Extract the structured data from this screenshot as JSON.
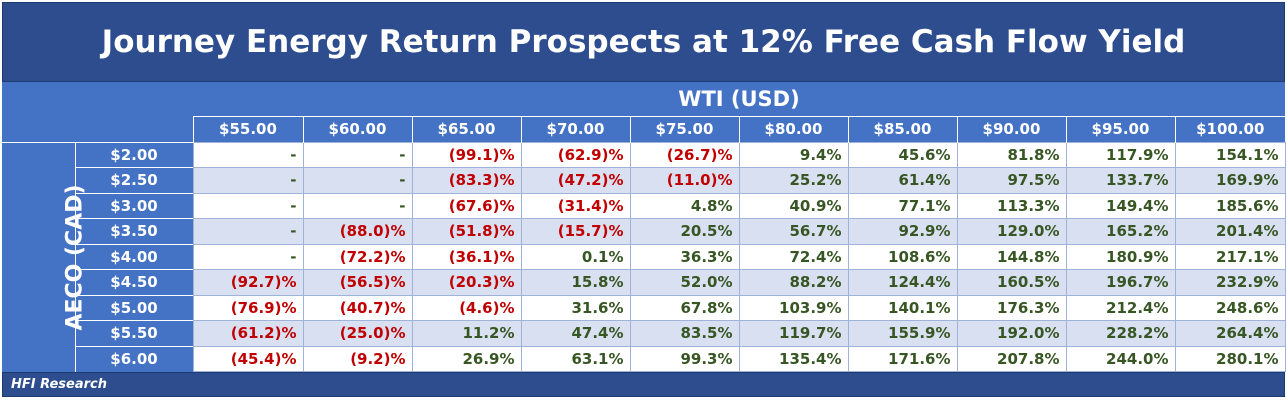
{
  "title": "Journey Energy Return Prospects at 12% Free Cash Flow Yield",
  "x_axis_label": "WTI (USD)",
  "y_axis_label": "AECO (CAD)",
  "columns": [
    "$55.00",
    "$60.00",
    "$65.00",
    "$70.00",
    "$75.00",
    "$80.00",
    "$85.00",
    "$90.00",
    "$95.00",
    "$100.00"
  ],
  "rows": [
    {
      "label": "$2.00",
      "cells": [
        "-",
        "-",
        "(99.1)%",
        "(62.9)%",
        "(26.7)%",
        "9.4%",
        "45.6%",
        "81.8%",
        "117.9%",
        "154.1%"
      ]
    },
    {
      "label": "$2.50",
      "cells": [
        "-",
        "-",
        "(83.3)%",
        "(47.2)%",
        "(11.0)%",
        "25.2%",
        "61.4%",
        "97.5%",
        "133.7%",
        "169.9%"
      ]
    },
    {
      "label": "$3.00",
      "cells": [
        "-",
        "-",
        "(67.6)%",
        "(31.4)%",
        "4.8%",
        "40.9%",
        "77.1%",
        "113.3%",
        "149.4%",
        "185.6%"
      ]
    },
    {
      "label": "$3.50",
      "cells": [
        "-",
        "(88.0)%",
        "(51.8)%",
        "(15.7)%",
        "20.5%",
        "56.7%",
        "92.9%",
        "129.0%",
        "165.2%",
        "201.4%"
      ]
    },
    {
      "label": "$4.00",
      "cells": [
        "-",
        "(72.2)%",
        "(36.1)%",
        "0.1%",
        "36.3%",
        "72.4%",
        "108.6%",
        "144.8%",
        "180.9%",
        "217.1%"
      ]
    },
    {
      "label": "$4.50",
      "cells": [
        "(92.7)%",
        "(56.5)%",
        "(20.3)%",
        "15.8%",
        "52.0%",
        "88.2%",
        "124.4%",
        "160.5%",
        "196.7%",
        "232.9%"
      ]
    },
    {
      "label": "$5.00",
      "cells": [
        "(76.9)%",
        "(40.7)%",
        "(4.6)%",
        "31.6%",
        "67.8%",
        "103.9%",
        "140.1%",
        "176.3%",
        "212.4%",
        "248.6%"
      ]
    },
    {
      "label": "$5.50",
      "cells": [
        "(61.2)%",
        "(25.0)%",
        "11.2%",
        "47.4%",
        "83.5%",
        "119.7%",
        "155.9%",
        "192.0%",
        "228.2%",
        "264.4%"
      ]
    },
    {
      "label": "$6.00",
      "cells": [
        "(45.4)%",
        "(9.2)%",
        "26.9%",
        "63.1%",
        "99.3%",
        "135.4%",
        "171.6%",
        "207.8%",
        "244.0%",
        "280.1%"
      ]
    }
  ],
  "footer": "HFI Research",
  "colors": {
    "header_dark": "#2e4d8f",
    "header": "#4472c4",
    "negative": "#c00000",
    "positive": "#375623",
    "band": "#d9e0f1"
  }
}
